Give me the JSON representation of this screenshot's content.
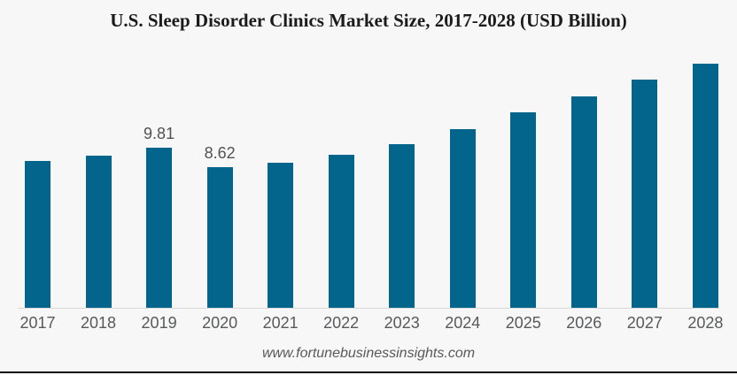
{
  "title": "U.S. Sleep Disorder Clinics Market Size, 2017-2028 (USD Billion)",
  "footer": {
    "website": "www.fortunebusinessinsights.com"
  },
  "colors": {
    "bar": "#04658c",
    "background": "#f7f7f7",
    "axis_line": "#d9d9d9",
    "value_label_text": "#525254",
    "tick_label_text": "#58595b",
    "title_text": "#1b1b1b",
    "bottom_rule": "#111111"
  },
  "chart_data": {
    "type": "bar",
    "title": "U.S. Sleep Disorder Clinics Market Size, 2017-2028 (USD Billion)",
    "categories": [
      "2017",
      "2018",
      "2019",
      "2020",
      "2021",
      "2022",
      "2023",
      "2024",
      "2025",
      "2026",
      "2027",
      "2028"
    ],
    "values": [
      8.97,
      9.31,
      9.81,
      8.62,
      8.9,
      9.38,
      10.0,
      10.95,
      11.96,
      12.95,
      13.96,
      14.95
    ],
    "data_labels": [
      "",
      "",
      "9.81",
      "8.62",
      "",
      "",
      "",
      "",
      "",
      "",
      "",
      ""
    ],
    "xlabel": "",
    "ylabel": "USD Billion",
    "ylim": [
      0,
      15.7
    ],
    "y_axis_visible": false,
    "grid": false,
    "legend": false,
    "bar_color": "#04658c"
  }
}
